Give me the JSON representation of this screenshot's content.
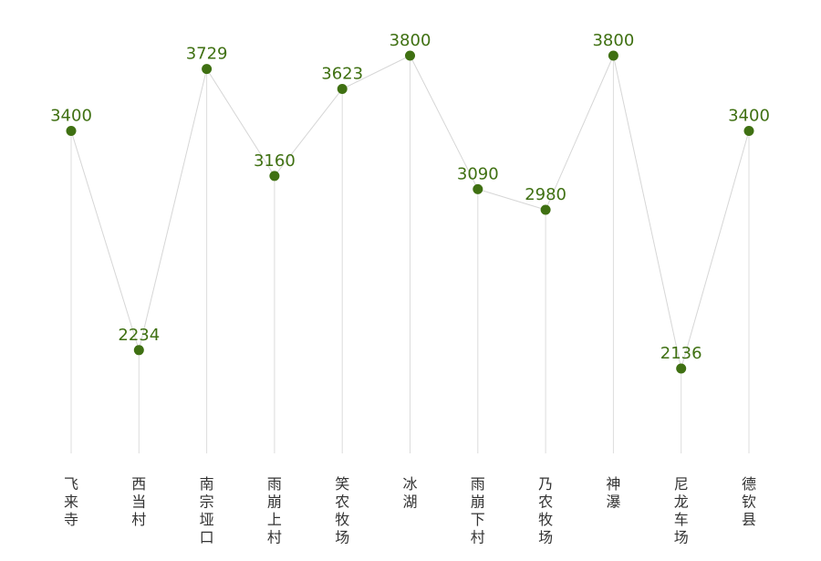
{
  "chart_data": {
    "type": "line",
    "categories": [
      "飞来寺",
      "西当村",
      "南宗垭口",
      "雨崩上村",
      "笑农牧场",
      "冰湖",
      "雨崩下村",
      "乃农牧场",
      "神瀑",
      "尼龙车场",
      "德钦县"
    ],
    "values": [
      3400,
      2234,
      3729,
      3160,
      3623,
      3800,
      3090,
      2980,
      3800,
      2136,
      3400
    ],
    "data_labels": [
      "3400",
      "2234",
      "3729",
      "3160",
      "3623",
      "3800",
      "3090",
      "2980",
      "3800",
      "2136",
      "3400"
    ],
    "title": "",
    "xlabel": "",
    "ylabel": "",
    "ylim": [
      0,
      4000
    ],
    "grid": false,
    "legend": "none",
    "colors": {
      "marker": "#3f7012",
      "value_label": "#3f7012",
      "connector": "#d6d6d6",
      "drop_line": "#dcdcdc",
      "category_label": "#333333"
    }
  }
}
